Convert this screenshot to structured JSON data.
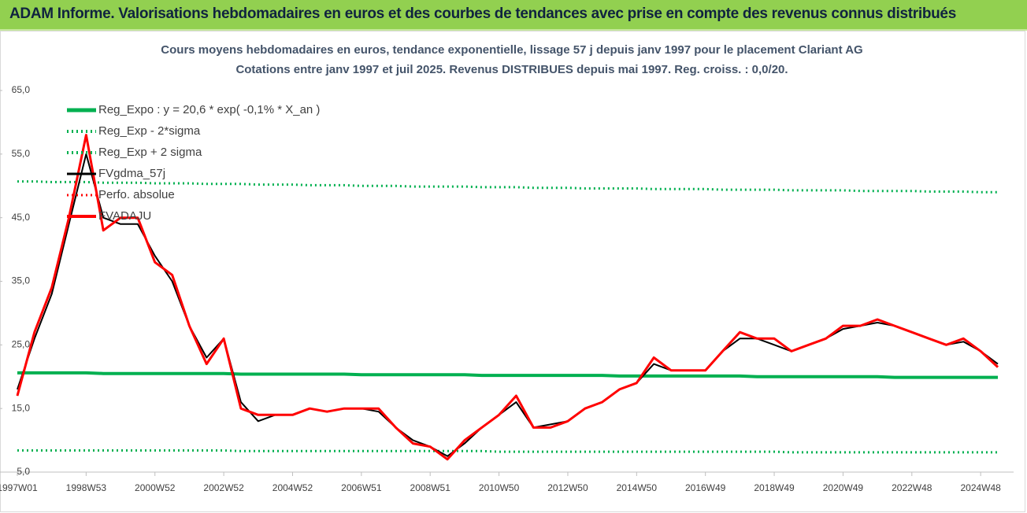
{
  "banner": {
    "title": "ADAM Informe. Valorisations hebdomadaires en euros et des courbes de tendances avec prise en compte des revenus connus distribués"
  },
  "chart_data": {
    "type": "line",
    "title": "Cours moyens hebdomadaires en euros, tendance exponentielle, lissage 57 j depuis janv 1997  pour le placement Clariant AG",
    "subtitle": "Cotations entre janv 1997 et juil 2025. Revenus DISTRIBUES depuis mai 1997. Reg. croiss. : 0,0/20.",
    "categories": [
      "1997W01",
      null,
      null,
      null,
      "1998W53",
      null,
      null,
      null,
      "2000W52",
      null,
      null,
      null,
      "2002W52",
      null,
      null,
      null,
      "2004W52",
      null,
      null,
      null,
      "2006W51",
      null,
      null,
      null,
      "2008W51",
      null,
      null,
      null,
      "2010W50",
      null,
      null,
      null,
      "2012W50",
      null,
      null,
      null,
      "2014W50",
      null,
      null,
      null,
      "2016W49",
      null,
      null,
      null,
      "2018W49",
      null,
      null,
      null,
      "2020W49",
      null,
      null,
      null,
      "2022W48",
      null,
      null,
      null,
      "2024W48",
      null
    ],
    "ylim": [
      5,
      65
    ],
    "yticks": [
      {
        "value": 5,
        "label": "5,0"
      },
      {
        "value": 15,
        "label": "15,0"
      },
      {
        "value": 25,
        "label": "25,0"
      },
      {
        "value": 35,
        "label": "35,0"
      },
      {
        "value": 45,
        "label": "45,0"
      },
      {
        "value": 55,
        "label": "55,0"
      },
      {
        "value": 65,
        "label": "65,0"
      }
    ],
    "grid": false,
    "legend": "top-left",
    "series": [
      {
        "name": "Reg_Expo : y = 20,6 * exp( -0,1% *  X_an )",
        "color": "#00b050",
        "line_style": "solid",
        "line_width": 4,
        "values": [
          20.6,
          20.6,
          20.6,
          20.6,
          20.6,
          20.5,
          20.5,
          20.5,
          20.5,
          20.5,
          20.5,
          20.5,
          20.5,
          20.4,
          20.4,
          20.4,
          20.4,
          20.4,
          20.4,
          20.4,
          20.3,
          20.3,
          20.3,
          20.3,
          20.3,
          20.3,
          20.3,
          20.2,
          20.2,
          20.2,
          20.2,
          20.2,
          20.2,
          20.2,
          20.2,
          20.1,
          20.1,
          20.1,
          20.1,
          20.1,
          20.1,
          20.1,
          20.1,
          20.0,
          20.0,
          20.0,
          20.0,
          20.0,
          20.0,
          20.0,
          20.0,
          19.9,
          19.9,
          19.9,
          19.9,
          19.9,
          19.9,
          19.9
        ]
      },
      {
        "name": "Reg_Exp - 2*sigma",
        "color": "#00b050",
        "line_style": "dotted",
        "line_width": 3,
        "values": [
          8.4,
          8.4,
          8.4,
          8.4,
          8.4,
          8.4,
          8.4,
          8.4,
          8.4,
          8.4,
          8.4,
          8.4,
          8.4,
          8.3,
          8.3,
          8.3,
          8.3,
          8.3,
          8.3,
          8.3,
          8.3,
          8.3,
          8.3,
          8.3,
          8.3,
          8.3,
          8.3,
          8.3,
          8.2,
          8.2,
          8.2,
          8.2,
          8.2,
          8.2,
          8.2,
          8.2,
          8.2,
          8.2,
          8.2,
          8.2,
          8.2,
          8.2,
          8.2,
          8.2,
          8.2,
          8.1,
          8.1,
          8.1,
          8.1,
          8.1,
          8.1,
          8.1,
          8.1,
          8.1,
          8.1,
          8.1,
          8.1,
          8.1
        ]
      },
      {
        "name": "Reg_Exp + 2 sigma",
        "color": "#00b050",
        "line_style": "dotted",
        "line_width": 3,
        "values": [
          50.7,
          50.7,
          50.6,
          50.6,
          50.6,
          50.5,
          50.5,
          50.5,
          50.4,
          50.4,
          50.4,
          50.3,
          50.3,
          50.3,
          50.2,
          50.2,
          50.2,
          50.1,
          50.1,
          50.1,
          50.0,
          50.0,
          50.0,
          49.9,
          49.9,
          49.9,
          49.9,
          49.8,
          49.8,
          49.8,
          49.7,
          49.7,
          49.7,
          49.6,
          49.6,
          49.6,
          49.6,
          49.5,
          49.5,
          49.5,
          49.5,
          49.4,
          49.4,
          49.4,
          49.4,
          49.3,
          49.3,
          49.3,
          49.3,
          49.2,
          49.2,
          49.2,
          49.2,
          49.1,
          49.1,
          49.1,
          49.0,
          49.0
        ]
      },
      {
        "name": "FVgdma_57j",
        "color": "#000000",
        "line_style": "solid",
        "line_width": 2,
        "values": [
          18,
          26,
          33,
          44,
          55,
          45,
          44,
          44,
          39,
          35,
          28,
          23,
          26,
          16,
          13,
          14,
          14,
          15,
          14.5,
          15,
          15,
          14.5,
          12,
          10,
          9,
          7.5,
          9.5,
          12,
          14,
          16,
          12,
          12.5,
          13,
          15,
          16,
          18,
          19,
          22,
          21,
          21,
          21,
          24,
          26,
          26,
          25,
          24,
          25,
          26,
          27.5,
          28,
          28.5,
          28,
          27,
          26,
          25,
          25.5,
          24,
          22
        ]
      },
      {
        "name": "Perfo. absolue",
        "color": "#ff0000",
        "line_style": "dotted",
        "line_width": 2,
        "values": [
          17,
          27,
          34,
          45,
          58,
          43,
          45,
          45,
          38,
          36,
          28,
          22,
          26,
          15,
          14,
          14,
          14,
          15,
          14.5,
          15,
          15,
          15,
          12,
          9.5,
          9,
          7,
          10,
          12,
          14,
          17,
          12,
          12,
          13,
          15,
          16,
          18,
          19,
          23,
          21,
          21,
          21,
          24,
          27,
          26,
          26,
          24,
          25,
          26,
          28,
          28,
          29,
          28,
          27,
          26,
          25,
          26,
          24,
          21.5
        ]
      },
      {
        "name": "FVADAJU",
        "color": "#ff0000",
        "line_style": "solid",
        "line_width": 3,
        "values": [
          17,
          27,
          34,
          45,
          58,
          43,
          45,
          45,
          38,
          36,
          28,
          22,
          26,
          15,
          14,
          14,
          14,
          15,
          14.5,
          15,
          15,
          15,
          12,
          9.5,
          9,
          7,
          10,
          12,
          14,
          17,
          12,
          12,
          13,
          15,
          16,
          18,
          19,
          23,
          21,
          21,
          21,
          24,
          27,
          26,
          26,
          24,
          25,
          26,
          28,
          28,
          29,
          28,
          27,
          26,
          25,
          26,
          24,
          21.5
        ]
      }
    ]
  }
}
